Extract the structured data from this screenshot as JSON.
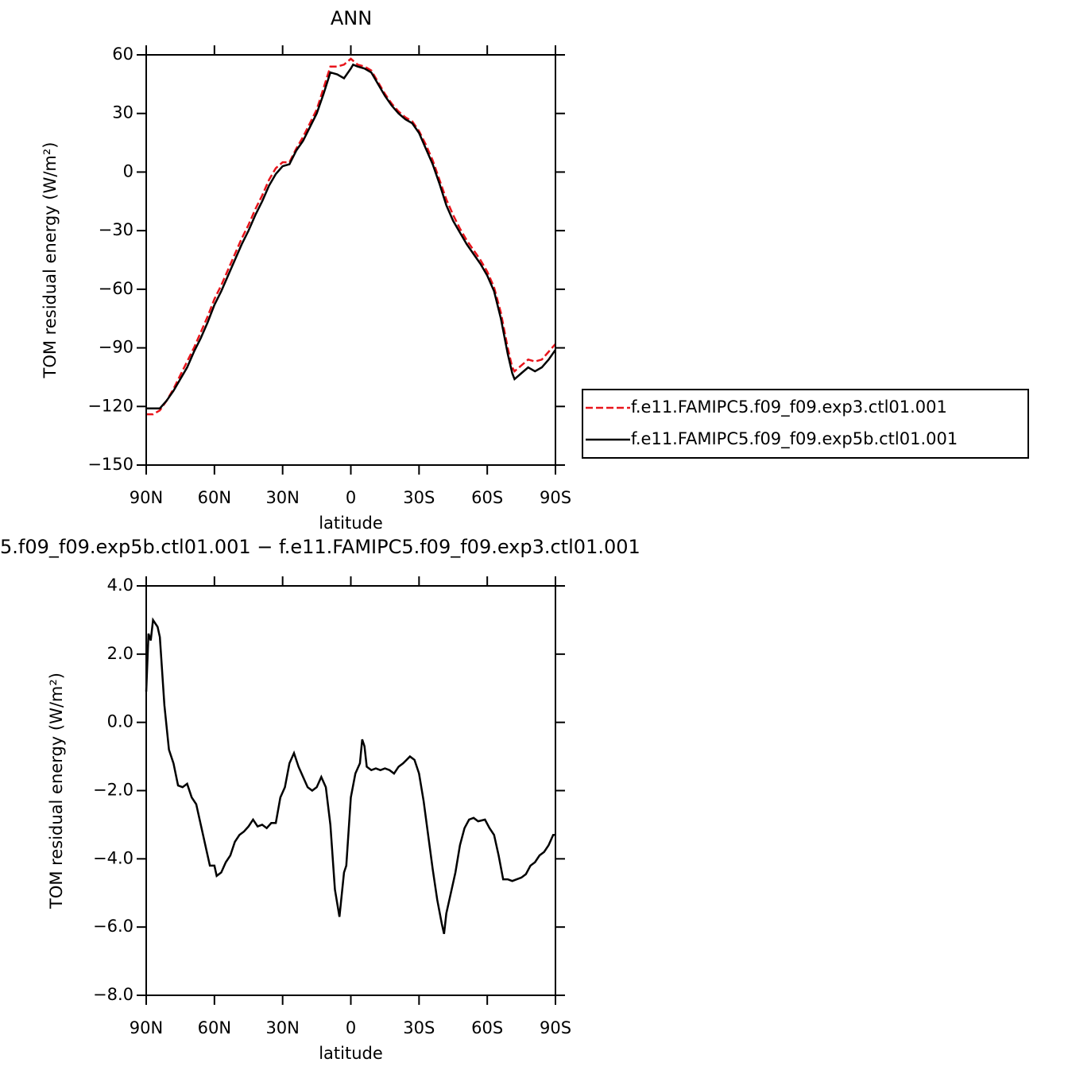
{
  "chart_data": [
    {
      "type": "line",
      "title": "ANN",
      "x_label": "latitude",
      "y_label": "TOM residual energy (W/m²)",
      "x": [
        90,
        87,
        84,
        81,
        78,
        75,
        72,
        69,
        66,
        63,
        60,
        57,
        54,
        51,
        48,
        45,
        42,
        39,
        36,
        33,
        30,
        27,
        24,
        21,
        18,
        15,
        12,
        9,
        6,
        3,
        0,
        -1,
        -3,
        -6,
        -9,
        -12,
        -15,
        -18,
        -21,
        -24,
        -27,
        -30,
        -33,
        -36,
        -39,
        -42,
        -45,
        -48,
        -51,
        -54,
        -57,
        -60,
        -63,
        -66,
        -69,
        -71,
        -72,
        -75,
        -78,
        -81,
        -84,
        -87,
        -90
      ],
      "series": [
        {
          "name": "f.e11.FAMIPC5.f09_f09.exp3.ctl01.001",
          "color": "#e8141b",
          "dashed": true,
          "values": [
            -124,
            -124,
            -122,
            -117,
            -111,
            -104,
            -97,
            -90,
            -82,
            -74,
            -65,
            -58,
            -50,
            -42,
            -34,
            -27,
            -19,
            -12,
            -4,
            2,
            5,
            5,
            12,
            18,
            25,
            32,
            43,
            54,
            54,
            55,
            58,
            57,
            55,
            54,
            52,
            46,
            40,
            35,
            31,
            28,
            26,
            21,
            14,
            6,
            -4,
            -14,
            -22,
            -29,
            -35,
            -40,
            -45,
            -51,
            -59,
            -72,
            -90,
            -100,
            -102,
            -99,
            -96,
            -97,
            -96,
            -92,
            -88
          ]
        },
        {
          "name": "f.e11.FAMIPC5.f09_f09.exp5b.ctl01.001",
          "color": "#000000",
          "dashed": false,
          "values": [
            -121,
            -121,
            -121,
            -117,
            -112,
            -106,
            -100,
            -92,
            -85,
            -77,
            -68,
            -61,
            -53,
            -45,
            -37,
            -30,
            -22,
            -15,
            -7,
            -1,
            3,
            4,
            11,
            16,
            23,
            30,
            40,
            51,
            50,
            48,
            53,
            55,
            54,
            53,
            51,
            45,
            39,
            34,
            30,
            27,
            25,
            20,
            12,
            4,
            -6,
            -17,
            -25,
            -31,
            -37,
            -42,
            -47,
            -53,
            -61,
            -75,
            -93,
            -103,
            -106,
            -103,
            -100,
            -102,
            -100,
            -96,
            -91
          ]
        }
      ],
      "xlim": [
        90,
        -90
      ],
      "ylim": [
        -150,
        60
      ],
      "xticks": [
        {
          "value": 90,
          "label": "90N"
        },
        {
          "value": 60,
          "label": "60N"
        },
        {
          "value": 30,
          "label": "30N"
        },
        0,
        {
          "value": -30,
          "label": "30S"
        },
        {
          "value": -60,
          "label": "60S"
        },
        {
          "value": -90,
          "label": "90S"
        }
      ],
      "yticks": [
        {
          "value": -150,
          "label": "−150"
        },
        {
          "value": -120,
          "label": "−120"
        },
        {
          "value": -90,
          "label": "−90"
        },
        {
          "value": -60,
          "label": "−60"
        },
        {
          "value": -30,
          "label": "−30"
        },
        0,
        30,
        60
      ],
      "legend": "right"
    },
    {
      "type": "line",
      "title": "5.f09_f09.exp5b.ctl01.001 − f.e11.FAMIPC5.f09_f09.exp3.ctl01.001",
      "x_label": "latitude",
      "y_label": "TOM residual energy (W/m²)",
      "x": [
        90,
        89,
        88,
        87,
        85,
        84,
        82,
        80,
        78,
        76,
        74,
        72,
        70,
        68,
        66,
        64,
        62,
        60,
        59,
        57,
        55,
        53,
        51,
        49,
        47,
        45,
        43,
        41,
        39,
        37,
        35,
        33,
        31,
        29,
        27,
        25,
        23,
        21,
        19,
        17,
        15,
        13,
        11,
        9,
        7,
        5,
        3,
        2,
        0,
        -2,
        -4,
        -5,
        -6,
        -7,
        -9,
        -11,
        -13,
        -15,
        -17,
        -19,
        -21,
        -23,
        -26,
        -28,
        -30,
        -32,
        -34,
        -36,
        -38,
        -40,
        -41,
        -42,
        -44,
        -46,
        -48,
        -50,
        -52,
        -54,
        -56,
        -59,
        -61,
        -63,
        -65,
        -67,
        -69,
        -71,
        -73,
        -75,
        -77,
        -79,
        -81,
        -83,
        -85,
        -87,
        -89,
        -90
      ],
      "series": [
        {
          "color": "#000000",
          "dashed": false,
          "values": [
            0.9,
            2.6,
            2.4,
            3.0,
            2.8,
            2.5,
            0.5,
            -0.8,
            -1.2,
            -1.85,
            -1.9,
            -1.8,
            -2.2,
            -2.4,
            -3.0,
            -3.6,
            -4.2,
            -4.2,
            -4.5,
            -4.4,
            -4.1,
            -3.9,
            -3.5,
            -3.3,
            -3.2,
            -3.05,
            -2.85,
            -3.05,
            -3.0,
            -3.1,
            -2.95,
            -2.95,
            -2.2,
            -1.9,
            -1.2,
            -0.9,
            -1.3,
            -1.6,
            -1.9,
            -2.0,
            -1.9,
            -1.6,
            -1.9,
            -3.0,
            -4.9,
            -5.7,
            -4.4,
            -4.2,
            -2.2,
            -1.5,
            -1.2,
            -0.5,
            -0.7,
            -1.3,
            -1.4,
            -1.35,
            -1.4,
            -1.35,
            -1.4,
            -1.5,
            -1.3,
            -1.2,
            -1.0,
            -1.1,
            -1.5,
            -2.3,
            -3.3,
            -4.3,
            -5.2,
            -5.9,
            -6.2,
            -5.6,
            -5.0,
            -4.4,
            -3.6,
            -3.1,
            -2.85,
            -2.8,
            -2.9,
            -2.85,
            -3.1,
            -3.3,
            -3.9,
            -4.6,
            -4.6,
            -4.65,
            -4.6,
            -4.55,
            -4.45,
            -4.2,
            -4.1,
            -3.9,
            -3.8,
            -3.6,
            -3.3,
            -3.3
          ]
        }
      ],
      "xlim": [
        90,
        -90
      ],
      "ylim": [
        -8,
        4
      ],
      "xticks": [
        {
          "value": 90,
          "label": "90N"
        },
        {
          "value": 60,
          "label": "60N"
        },
        {
          "value": 30,
          "label": "30N"
        },
        0,
        {
          "value": -30,
          "label": "30S"
        },
        {
          "value": -60,
          "label": "60S"
        },
        {
          "value": -90,
          "label": "90S"
        }
      ],
      "yticks": [
        {
          "value": -8,
          "label": "−8.0"
        },
        {
          "value": -6,
          "label": "−6.0"
        },
        {
          "value": -4,
          "label": "−4.0"
        },
        {
          "value": -2,
          "label": "−2.0"
        },
        {
          "value": 0,
          "label": "0.0"
        },
        {
          "value": 2,
          "label": "2.0"
        },
        {
          "value": 4,
          "label": "4.0"
        }
      ]
    }
  ]
}
